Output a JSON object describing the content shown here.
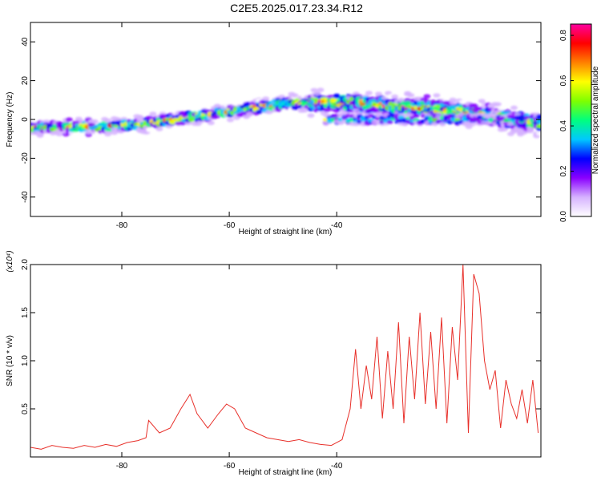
{
  "title": "C2E5.2025.017.23.34.R12",
  "colors": {
    "line": "#e8302a",
    "axis": "#000000",
    "background": "#ffffff",
    "colormap": [
      "#ffffff",
      "#d6b3ff",
      "#8a00ff",
      "#0000ff",
      "#00c8ff",
      "#00ff7f",
      "#7fff00",
      "#ffff00",
      "#ff8000",
      "#ff0000",
      "#ff00a0"
    ]
  },
  "chart_data": [
    {
      "type": "heatmap",
      "xlabel": "Height of straight line (km)",
      "ylabel": "Frequency (Hz)",
      "xlim": [
        -97,
        -2
      ],
      "ylim": [
        -50,
        50
      ],
      "xticks": [
        -80,
        -60,
        -40
      ],
      "yticks": [
        40,
        20,
        0,
        -20,
        -40
      ],
      "grid": false,
      "ridge": {
        "x": [
          -97,
          -90,
          -85,
          -80,
          -75,
          -70,
          -65,
          -60,
          -55,
          -50,
          -45,
          -40,
          -35,
          -30,
          -25,
          -20,
          -15,
          -10,
          -5,
          -2
        ],
        "y": [
          -4,
          -4,
          -4,
          -3,
          -2,
          0,
          2,
          4,
          6,
          8,
          9,
          9,
          8,
          7,
          6,
          5,
          3,
          1,
          -1,
          -2
        ]
      },
      "secondary_band": {
        "x": [
          -42,
          -35,
          -30,
          -25,
          -20,
          -15,
          -10,
          -5
        ],
        "y": [
          0,
          0,
          0,
          0,
          0,
          0,
          0,
          0
        ]
      },
      "colorbar": {
        "label": "Normalized spectral amplitude",
        "min": 0.0,
        "max": 0.85,
        "ticks": [
          "0.0",
          "0.2",
          "0.4",
          "0.6",
          "0.8"
        ]
      }
    },
    {
      "type": "line",
      "xlabel": "Height of straight line (km)",
      "ylabel": "SNR (10 * v/v)",
      "y_scale_note": "(x10⁴)",
      "xlim": [
        -97,
        -2
      ],
      "ylim": [
        0,
        2.0
      ],
      "xticks": [
        -80,
        -60,
        -40
      ],
      "yticks": [
        "0.5",
        "1.0",
        "1.5",
        "2.0"
      ],
      "grid": false,
      "series": [
        {
          "x": [
            -97,
            -95,
            -93,
            -91,
            -89,
            -87,
            -85,
            -83,
            -81,
            -79,
            -77,
            -75.5,
            -75,
            -73,
            -71,
            -69,
            -67.3,
            -66,
            -64,
            -62,
            -60.5,
            -59,
            -57,
            -55,
            -53,
            -51,
            -49,
            -47,
            -45,
            -43,
            -41,
            -39,
            -37.5,
            -36.5,
            -35.5,
            -34.5,
            -33.5,
            -32.5,
            -31.5,
            -30.5,
            -29.5,
            -28.5,
            -27.5,
            -26.5,
            -25.5,
            -24.5,
            -23.5,
            -22.5,
            -21.5,
            -20.5,
            -19.5,
            -18.5,
            -17.5,
            -16.5,
            -15.5,
            -14.5,
            -13.5,
            -12.5,
            -11.5,
            -10.5,
            -9.5,
            -8.5,
            -7.5,
            -6.5,
            -5.5,
            -4.5,
            -3.5,
            -2.5
          ],
          "values": [
            0.1,
            0.08,
            0.12,
            0.1,
            0.09,
            0.12,
            0.1,
            0.13,
            0.11,
            0.15,
            0.17,
            0.2,
            0.38,
            0.25,
            0.3,
            0.5,
            0.65,
            0.45,
            0.3,
            0.45,
            0.55,
            0.5,
            0.3,
            0.25,
            0.2,
            0.18,
            0.16,
            0.18,
            0.15,
            0.13,
            0.12,
            0.18,
            0.5,
            1.12,
            0.5,
            0.95,
            0.6,
            1.25,
            0.4,
            1.1,
            0.5,
            1.4,
            0.35,
            1.25,
            0.6,
            1.5,
            0.55,
            1.3,
            0.5,
            1.45,
            0.35,
            1.35,
            0.8,
            2.0,
            0.25,
            1.9,
            1.7,
            1.0,
            0.7,
            0.9,
            0.3,
            0.8,
            0.55,
            0.4,
            0.7,
            0.35,
            0.8,
            0.25
          ]
        }
      ]
    }
  ]
}
